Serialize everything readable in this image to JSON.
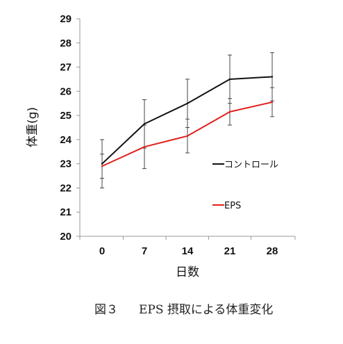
{
  "chart_data": {
    "type": "line",
    "ylabel": "体重(g)",
    "xlabel": "日数",
    "x": [
      0,
      7,
      14,
      21,
      28
    ],
    "categories": [
      "0",
      "7",
      "14",
      "21",
      "28"
    ],
    "ylim": [
      20,
      29
    ],
    "yticks": [
      20,
      21,
      22,
      23,
      24,
      25,
      26,
      27,
      28,
      29
    ],
    "series": [
      {
        "name": "コントロール",
        "color": "#111111",
        "values": [
          23.0,
          24.65,
          25.5,
          26.5,
          26.6
        ],
        "errors": [
          1.0,
          1.0,
          1.0,
          1.0,
          1.0
        ]
      },
      {
        "name": "EPS",
        "color": "#e0201c",
        "values": [
          22.9,
          23.7,
          24.15,
          25.15,
          25.55
        ],
        "errors": [
          0.5,
          0.9,
          0.7,
          0.55,
          0.6
        ]
      }
    ],
    "legend_position": "right"
  },
  "caption": {
    "label": "図３",
    "text": "EPS 摂取による体重変化"
  }
}
